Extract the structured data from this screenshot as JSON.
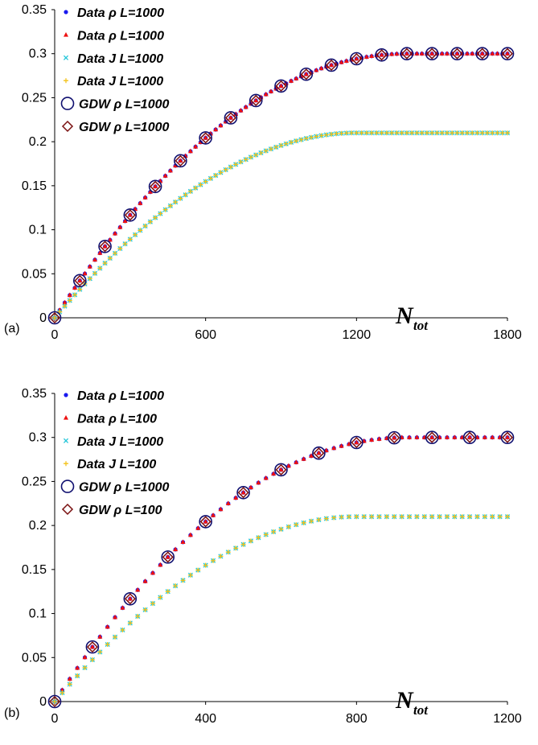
{
  "chart_data": [
    {
      "panel_label": "(a)",
      "type": "scatter",
      "xlabel": "N",
      "xlabel_sub": "tot",
      "xlim": [
        0,
        1800
      ],
      "ylim": [
        0,
        0.35
      ],
      "xticks": [
        "0",
        "600",
        "1200",
        "1800"
      ],
      "yticks": [
        "0",
        "0.05",
        "0.1",
        "0.15",
        "0.2",
        "0.25",
        "0.3",
        "0.35"
      ],
      "rho_max": 0.3,
      "j_max": 0.21,
      "series": [
        {
          "name": "Data ρ L=1000",
          "marker": "dot",
          "color": "#1a1aee",
          "quantity": "rho",
          "step": 20
        },
        {
          "name": "Data ρ L=1000",
          "marker": "triangle",
          "color": "#ee1111",
          "quantity": "rho",
          "step": 20
        },
        {
          "name": "Data J L=1000",
          "marker": "cross",
          "color": "#22c5d8",
          "quantity": "J",
          "step": 20
        },
        {
          "name": "Data J L=1000",
          "marker": "plus",
          "color": "#f3c21a",
          "quantity": "J",
          "step": 20
        },
        {
          "name": "GDW ρ L=1000",
          "marker": "circle",
          "color": "#101070",
          "quantity": "rho",
          "x": [
            0,
            100,
            200,
            300,
            400,
            500,
            600,
            700,
            800,
            900,
            1000,
            1100,
            1200,
            1300,
            1400,
            1500,
            1600,
            1700,
            1800
          ]
        },
        {
          "name": "GDW ρ L=1000",
          "marker": "diamond",
          "color": "#7a1010",
          "quantity": "rho",
          "x": [
            0,
            100,
            200,
            300,
            400,
            500,
            600,
            700,
            800,
            900,
            1000,
            1100,
            1200,
            1300,
            1400,
            1500,
            1600,
            1700,
            1800
          ]
        }
      ]
    },
    {
      "panel_label": "(b)",
      "type": "scatter",
      "xlabel": "N",
      "xlabel_sub": "tot",
      "xlim": [
        0,
        1200
      ],
      "ylim": [
        0,
        0.35
      ],
      "xticks": [
        "0",
        "400",
        "800",
        "1200"
      ],
      "yticks": [
        "0",
        "0.05",
        "0.1",
        "0.15",
        "0.2",
        "0.25",
        "0.3",
        "0.35"
      ],
      "rho_max": 0.3,
      "j_max": 0.21,
      "series": [
        {
          "name": "Data ρ L=1000",
          "marker": "dot",
          "color": "#1a1aee",
          "quantity": "rho",
          "step": 20
        },
        {
          "name": "Data ρ L=100",
          "marker": "triangle",
          "color": "#ee1111",
          "quantity": "rho",
          "step": 20
        },
        {
          "name": "Data J L=1000",
          "marker": "cross",
          "color": "#22c5d8",
          "quantity": "J",
          "step": 20
        },
        {
          "name": "Data J L=100",
          "marker": "plus",
          "color": "#f3c21a",
          "quantity": "J",
          "step": 20
        },
        {
          "name": "GDW ρ L=1000",
          "marker": "circle",
          "color": "#101070",
          "quantity": "rho",
          "x": [
            0,
            100,
            200,
            300,
            400,
            500,
            600,
            700,
            800,
            900,
            1000,
            1100,
            1200
          ]
        },
        {
          "name": "GDW ρ L=100",
          "marker": "diamond",
          "color": "#7a1010",
          "quantity": "rho",
          "x": [
            0,
            100,
            200,
            300,
            400,
            500,
            600,
            700,
            800,
            900,
            1000,
            1100,
            1200
          ]
        }
      ]
    }
  ]
}
